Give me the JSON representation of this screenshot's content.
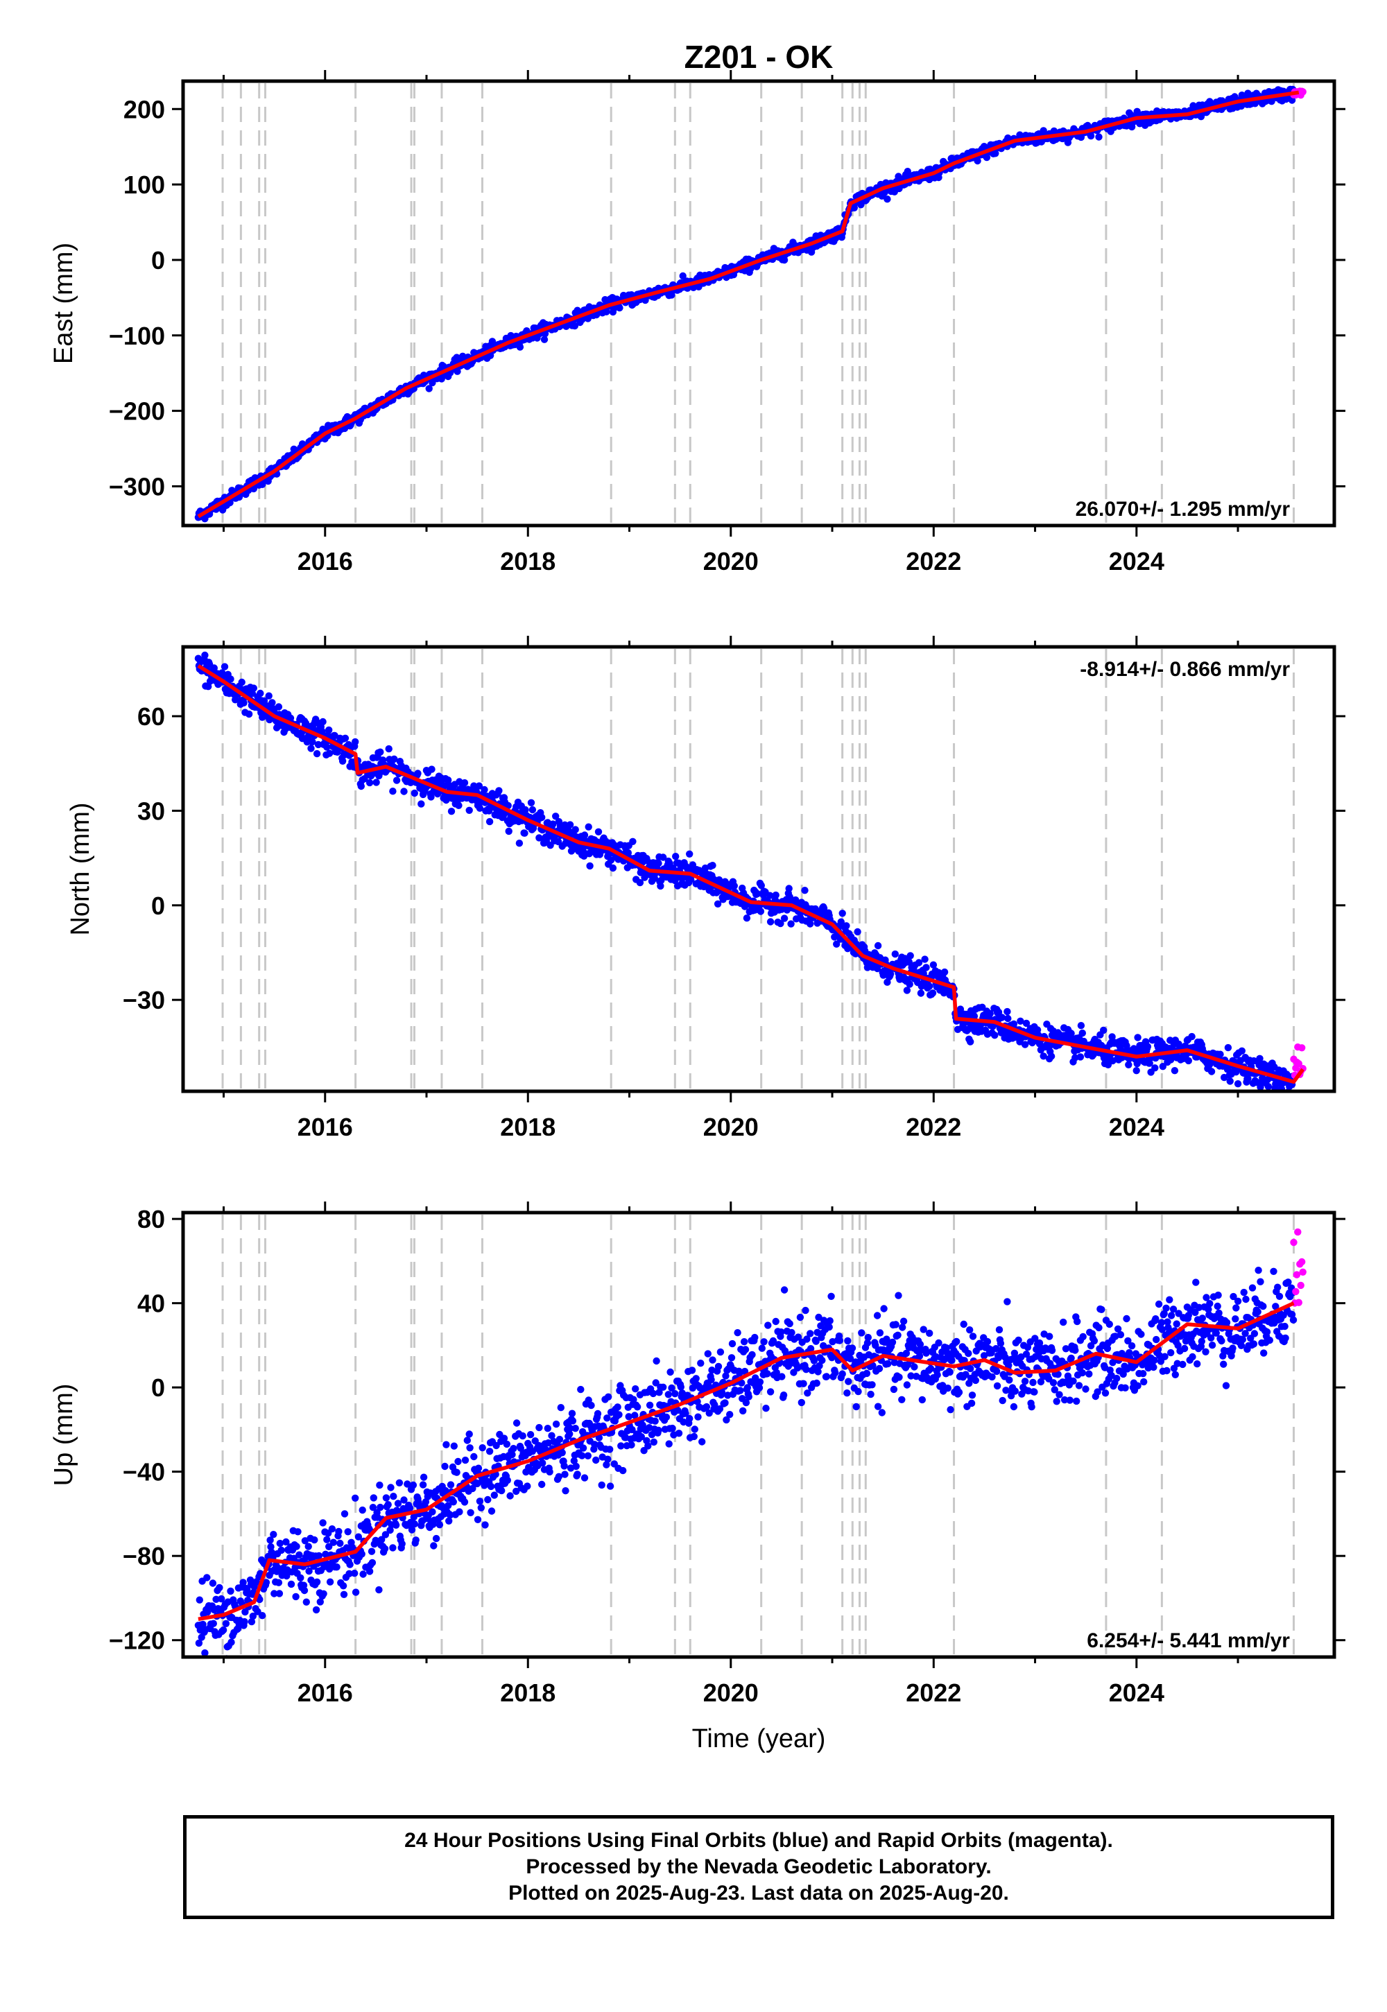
{
  "title": "Z201 - OK",
  "xlabel": "Time (year)",
  "colors": {
    "final": "#0000ff",
    "rapid": "#ff00ff",
    "model": "#ff0000",
    "events": "#c8c8c8",
    "frame": "#000000"
  },
  "chart_data": [
    {
      "type": "scatter",
      "ylabel": "East (mm)",
      "rate_label": "26.070+/- 1.295 mm/yr",
      "xlim": [
        2014.6,
        2025.95
      ],
      "ylim": [
        -352,
        237
      ],
      "xticks": [
        2016,
        2018,
        2020,
        2022,
        2024
      ],
      "yticks": [
        -300,
        -200,
        -100,
        0,
        100,
        200
      ],
      "ytick_labels": [
        "−300",
        "−200",
        "−100",
        "0",
        "100",
        "200"
      ],
      "grid": false,
      "series": [
        {
          "role": "trend",
          "x": [
            2014.75,
            2015.0,
            2015.5,
            2016.0,
            2016.3,
            2016.8,
            2017.3,
            2017.8,
            2018.3,
            2018.8,
            2019.3,
            2019.8,
            2020.3,
            2020.8,
            2021.1,
            2021.18,
            2021.5,
            2022.0,
            2022.2,
            2022.8,
            2023.5,
            2024.0,
            2024.5,
            2025.0,
            2025.6
          ],
          "y": [
            -340,
            -320,
            -280,
            -230,
            -210,
            -170,
            -140,
            -110,
            -85,
            -60,
            -42,
            -25,
            0,
            22,
            38,
            75,
            95,
            115,
            128,
            158,
            170,
            188,
            193,
            210,
            222
          ]
        }
      ],
      "noise": 4,
      "rapid": {
        "x_start": 2025.55,
        "x_end": 2025.64,
        "y": [
          216,
          224
        ]
      }
    },
    {
      "type": "scatter",
      "ylabel": "North (mm)",
      "rate_label": "-8.914+/- 0.866 mm/yr",
      "xlim": [
        2014.6,
        2025.95
      ],
      "ylim": [
        -59,
        82
      ],
      "xticks": [
        2016,
        2018,
        2020,
        2022,
        2024
      ],
      "yticks": [
        -30,
        0,
        30,
        60
      ],
      "ytick_labels": [
        "−30",
        "0",
        "30",
        "60"
      ],
      "grid": false,
      "series": [
        {
          "role": "trend",
          "x": [
            2014.75,
            2015.0,
            2015.5,
            2016.0,
            2016.3,
            2016.32,
            2016.6,
            2017.2,
            2017.5,
            2018.0,
            2018.5,
            2018.8,
            2019.2,
            2019.6,
            2020.2,
            2020.6,
            2021.0,
            2021.3,
            2021.6,
            2022.2,
            2022.22,
            2022.6,
            2023.0,
            2023.5,
            2024.0,
            2024.5,
            2025.0,
            2025.55,
            2025.64
          ],
          "y": [
            76,
            71,
            60,
            53,
            48,
            42,
            44,
            36,
            35,
            27,
            20,
            18,
            11,
            10,
            1,
            0,
            -6,
            -16,
            -20,
            -26,
            -36,
            -37,
            -42,
            -45,
            -48,
            -46,
            -51,
            -56,
            -52
          ]
        }
      ],
      "noise": 2.3,
      "rapid": {
        "x_start": 2025.55,
        "x_end": 2025.64,
        "y": [
          -54,
          -44
        ]
      }
    },
    {
      "type": "scatter",
      "ylabel": "Up (mm)",
      "rate_label": "6.254+/- 5.441 mm/yr",
      "xlim": [
        2014.6,
        2025.95
      ],
      "ylim": [
        -128,
        83
      ],
      "xticks": [
        2016,
        2018,
        2020,
        2022,
        2024
      ],
      "yticks": [
        -120,
        -80,
        -40,
        0,
        40,
        80
      ],
      "ytick_labels": [
        "−120",
        "−80",
        "−40",
        "0",
        "40",
        "80"
      ],
      "grid": false,
      "series": [
        {
          "role": "trend",
          "x": [
            2014.75,
            2015.0,
            2015.3,
            2015.45,
            2015.8,
            2016.3,
            2016.6,
            2017.0,
            2017.5,
            2018.0,
            2018.5,
            2018.8,
            2019.5,
            2020.0,
            2020.5,
            2021.0,
            2021.2,
            2021.5,
            2022.2,
            2022.5,
            2022.8,
            2023.2,
            2023.6,
            2024.0,
            2024.5,
            2025.0,
            2025.55
          ],
          "y": [
            -110,
            -108,
            -102,
            -82,
            -84,
            -78,
            -62,
            -58,
            -42,
            -35,
            -25,
            -20,
            -8,
            2,
            14,
            18,
            8,
            15,
            10,
            13,
            7,
            8,
            16,
            12,
            30,
            28,
            40
          ]
        }
      ],
      "noise": 9,
      "rapid": {
        "x_start": 2025.55,
        "x_end": 2025.64,
        "y": [
          40,
          78
        ]
      }
    }
  ],
  "event_years": [
    2014.99,
    2015.17,
    2015.35,
    2015.41,
    2016.3,
    2016.85,
    2016.88,
    2017.15,
    2017.55,
    2018.82,
    2019.45,
    2019.6,
    2020.3,
    2020.7,
    2021.1,
    2021.2,
    2021.27,
    2021.33,
    2022.2,
    2023.7,
    2024.25,
    2025.55
  ],
  "footer": {
    "line1": "24 Hour Positions Using Final Orbits (blue) and Rapid Orbits (magenta).",
    "line2": "Processed by the Nevada Geodetic Laboratory.",
    "line3": "Plotted on 2025-Aug-23. Last data on 2025-Aug-20."
  }
}
